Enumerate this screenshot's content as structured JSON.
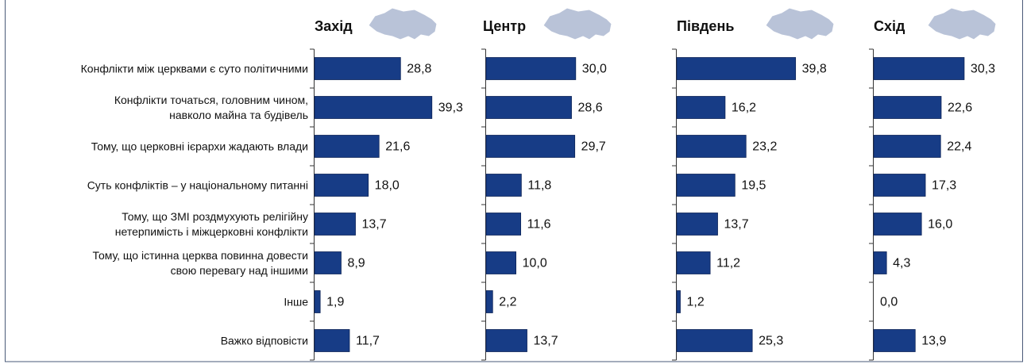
{
  "chart_data": {
    "type": "bar",
    "orientation": "horizontal",
    "categories": [
      "Конфлікти між церквами є суто політичними",
      "Конфлікти точаться, головним чином,\nнавколо майна та будівель",
      "Тому, що церковні ієрархи жадають влади",
      "Суть конфліктів – у національному питанні",
      "Тому, що ЗМІ роздмухують релігійну\nнетерпимість і міжцерковні конфлікти",
      "Тому, що істинна церква повинна довести\nсвою перевагу над іншими",
      "Інше",
      "Важко відповісти"
    ],
    "series": [
      {
        "name": "Захід",
        "color": "#173c86",
        "values": [
          28.8,
          39.3,
          21.6,
          18.0,
          13.7,
          8.9,
          1.9,
          11.7
        ],
        "value_labels": [
          "28,8",
          "39,3",
          "21,6",
          "18,0",
          "13,7",
          "8,9",
          "1,9",
          "11,7"
        ]
      },
      {
        "name": "Центр",
        "color": "#173c86",
        "values": [
          30.0,
          28.6,
          29.7,
          11.8,
          11.6,
          10.0,
          2.2,
          13.7
        ],
        "value_labels": [
          "30,0",
          "28,6",
          "29,7",
          "11,8",
          "11,6",
          "10,0",
          "2,2",
          "13,7"
        ]
      },
      {
        "name": "Південь",
        "color": "#173c86",
        "values": [
          39.8,
          16.2,
          23.2,
          19.5,
          13.7,
          11.2,
          1.2,
          25.3
        ],
        "value_labels": [
          "39,8",
          "16,2",
          "23,2",
          "19,5",
          "13,7",
          "11,2",
          "1,2",
          "25,3"
        ]
      },
      {
        "name": "Схід",
        "color": "#173c86",
        "values": [
          30.3,
          22.6,
          22.4,
          17.3,
          16.0,
          4.3,
          0.0,
          13.9
        ],
        "value_labels": [
          "30,3",
          "22,6",
          "22,4",
          "17,3",
          "16,0",
          "4,3",
          "0,0",
          "13,9"
        ]
      }
    ]
  }
}
